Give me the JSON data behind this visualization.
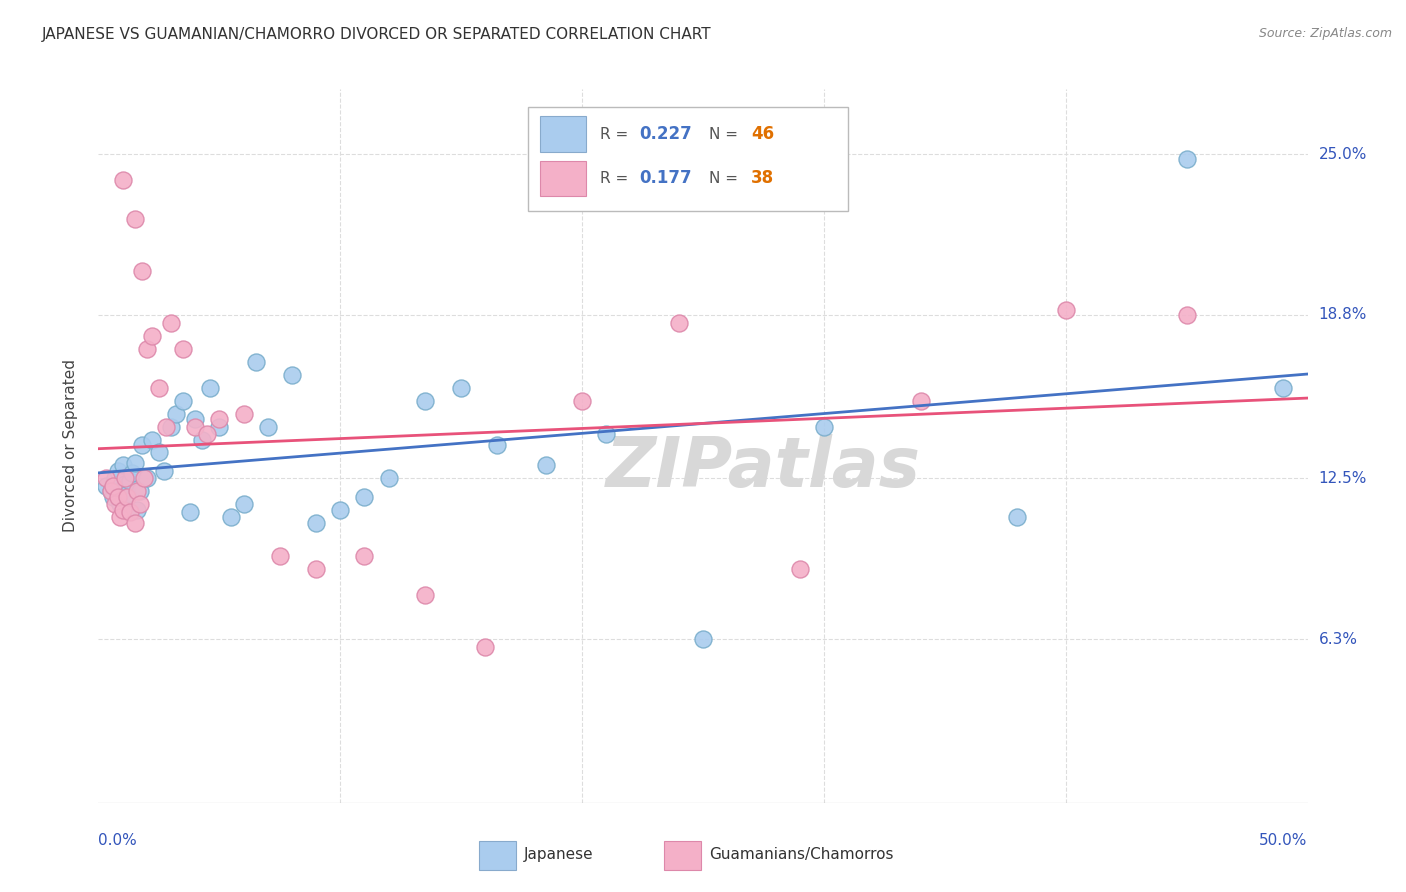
{
  "title": "JAPANESE VS GUAMANIAN/CHAMORRO DIVORCED OR SEPARATED CORRELATION CHART",
  "source": "Source: ZipAtlas.com",
  "ylabel": "Divorced or Separated",
  "ytick_labels": [
    "6.3%",
    "12.5%",
    "18.8%",
    "25.0%"
  ],
  "ytick_values": [
    0.063,
    0.125,
    0.188,
    0.25
  ],
  "xlim": [
    0.0,
    0.5
  ],
  "ylim": [
    0.0,
    0.275
  ],
  "blue_color": "#aaccee",
  "pink_color": "#f4b0c8",
  "blue_line_color": "#4472c4",
  "pink_line_color": "#e8527a",
  "blue_text_color": "#4472c4",
  "orange_text_color": "#e07000",
  "background_color": "#ffffff",
  "grid_color": "#dddddd",
  "title_fontsize": 11,
  "watermark_text": "ZIPatlas",
  "watermark_color": "#d8d8d8",
  "R_japanese": "0.227",
  "N_japanese": "46",
  "R_guam": "0.177",
  "N_guam": "38",
  "japanese_x": [
    0.003,
    0.005,
    0.006,
    0.007,
    0.008,
    0.009,
    0.01,
    0.011,
    0.012,
    0.013,
    0.014,
    0.015,
    0.016,
    0.017,
    0.018,
    0.02,
    0.022,
    0.025,
    0.027,
    0.03,
    0.032,
    0.035,
    0.038,
    0.04,
    0.043,
    0.046,
    0.05,
    0.055,
    0.06,
    0.065,
    0.07,
    0.08,
    0.09,
    0.1,
    0.11,
    0.12,
    0.135,
    0.15,
    0.165,
    0.185,
    0.21,
    0.25,
    0.3,
    0.38,
    0.45,
    0.49
  ],
  "japanese_y": [
    0.122,
    0.12,
    0.118,
    0.125,
    0.128,
    0.115,
    0.13,
    0.123,
    0.119,
    0.124,
    0.127,
    0.131,
    0.113,
    0.12,
    0.138,
    0.125,
    0.14,
    0.135,
    0.128,
    0.145,
    0.15,
    0.155,
    0.112,
    0.148,
    0.14,
    0.16,
    0.145,
    0.11,
    0.115,
    0.17,
    0.145,
    0.165,
    0.108,
    0.113,
    0.118,
    0.125,
    0.155,
    0.16,
    0.138,
    0.13,
    0.142,
    0.063,
    0.145,
    0.11,
    0.248,
    0.16
  ],
  "guam_x": [
    0.003,
    0.005,
    0.006,
    0.007,
    0.008,
    0.009,
    0.01,
    0.011,
    0.012,
    0.013,
    0.015,
    0.016,
    0.017,
    0.018,
    0.019,
    0.02,
    0.022,
    0.025,
    0.028,
    0.03,
    0.035,
    0.04,
    0.045,
    0.05,
    0.06,
    0.075,
    0.09,
    0.11,
    0.135,
    0.16,
    0.2,
    0.24,
    0.29,
    0.34,
    0.4,
    0.45,
    0.01,
    0.015
  ],
  "guam_y": [
    0.125,
    0.12,
    0.122,
    0.115,
    0.118,
    0.11,
    0.113,
    0.125,
    0.118,
    0.112,
    0.108,
    0.12,
    0.115,
    0.205,
    0.125,
    0.175,
    0.18,
    0.16,
    0.145,
    0.185,
    0.175,
    0.145,
    0.142,
    0.148,
    0.15,
    0.095,
    0.09,
    0.095,
    0.08,
    0.06,
    0.155,
    0.185,
    0.09,
    0.155,
    0.19,
    0.188,
    0.24,
    0.225
  ]
}
